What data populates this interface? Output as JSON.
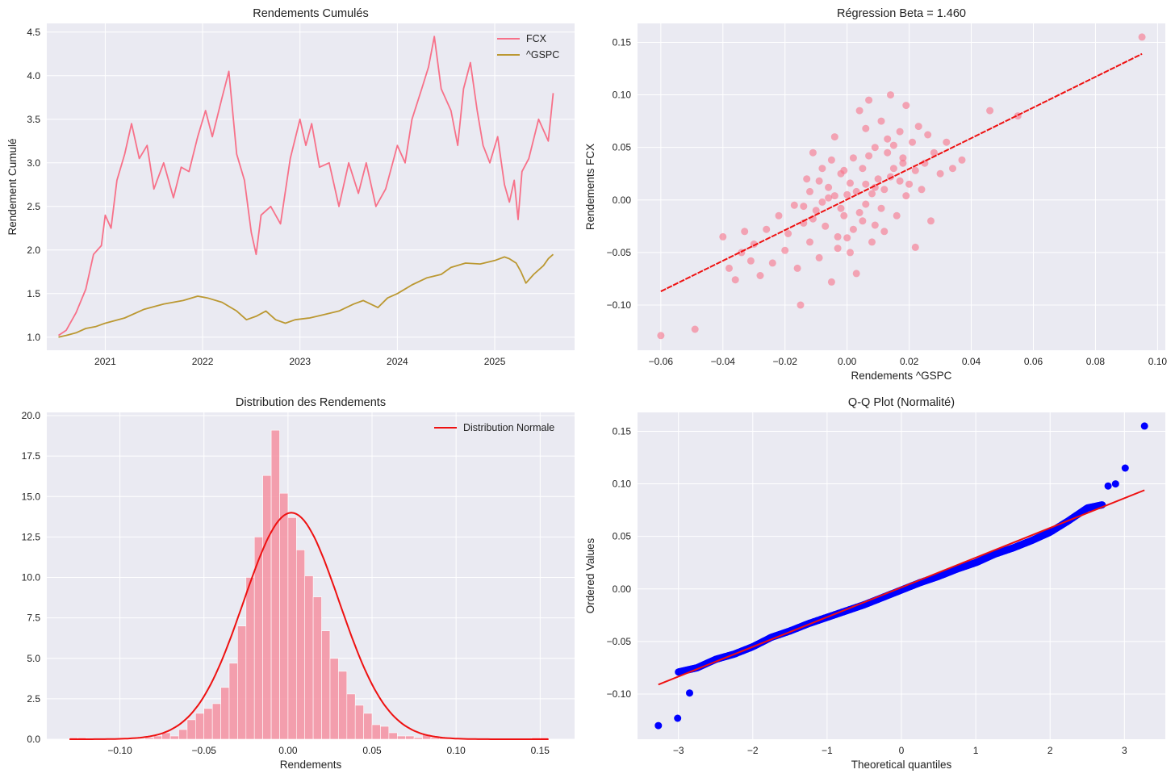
{
  "style": {
    "axes_bg": "#eaeaf2",
    "grid": "#ffffff",
    "fcx_color": "#f77189",
    "gspc_color": "#bb9832",
    "fit_color": "#ee1111",
    "qq_point_color": "#0000ff",
    "hist_color": "#f490a1"
  },
  "chart_data": [
    {
      "type": "line",
      "title": "Rendements Cumulés",
      "xlabel": "",
      "ylabel": "Rendement Cumulé",
      "xlim": [
        2020.4,
        2025.82
      ],
      "ylim": [
        0.85,
        4.6
      ],
      "xticks": [
        2021,
        2022,
        2023,
        2024,
        2025
      ],
      "xticklabels": [
        "2021",
        "2022",
        "2023",
        "2024",
        "2025"
      ],
      "yticks": [
        1.0,
        1.5,
        2.0,
        2.5,
        3.0,
        3.5,
        4.0,
        4.5
      ],
      "yticklabels": [
        "1.0",
        "1.5",
        "2.0",
        "2.5",
        "3.0",
        "3.5",
        "4.0",
        "4.5"
      ],
      "legend": {
        "position": "top-right",
        "entries": [
          "FCX",
          "^GSPC"
        ]
      },
      "series": [
        {
          "name": "FCX",
          "x": [
            2020.52,
            2020.6,
            2020.7,
            2020.8,
            2020.88,
            2020.96,
            2021.0,
            2021.06,
            2021.12,
            2021.2,
            2021.27,
            2021.35,
            2021.43,
            2021.5,
            2021.6,
            2021.7,
            2021.78,
            2021.86,
            2021.95,
            2022.03,
            2022.1,
            2022.2,
            2022.27,
            2022.35,
            2022.43,
            2022.5,
            2022.55,
            2022.6,
            2022.7,
            2022.8,
            2022.9,
            2023.0,
            2023.06,
            2023.12,
            2023.2,
            2023.3,
            2023.4,
            2023.5,
            2023.6,
            2023.68,
            2023.78,
            2023.88,
            2024.0,
            2024.08,
            2024.15,
            2024.25,
            2024.32,
            2024.38,
            2024.45,
            2024.55,
            2024.62,
            2024.68,
            2024.75,
            2024.82,
            2024.88,
            2024.95,
            2025.03,
            2025.1,
            2025.15,
            2025.2,
            2025.24,
            2025.28,
            2025.35,
            2025.45,
            2025.55,
            2025.6
          ],
          "values": [
            1.02,
            1.08,
            1.28,
            1.55,
            1.95,
            2.05,
            2.4,
            2.25,
            2.8,
            3.1,
            3.45,
            3.05,
            3.2,
            2.7,
            3.0,
            2.6,
            2.95,
            2.9,
            3.3,
            3.6,
            3.3,
            3.75,
            4.05,
            3.1,
            2.8,
            2.2,
            1.95,
            2.4,
            2.5,
            2.3,
            3.05,
            3.5,
            3.2,
            3.45,
            2.95,
            3.0,
            2.5,
            3.0,
            2.65,
            3.0,
            2.5,
            2.7,
            3.2,
            3.0,
            3.5,
            3.85,
            4.1,
            4.45,
            3.85,
            3.6,
            3.2,
            3.85,
            4.15,
            3.6,
            3.2,
            3.0,
            3.3,
            2.75,
            2.55,
            2.8,
            2.35,
            2.9,
            3.05,
            3.5,
            3.25,
            3.8
          ]
        },
        {
          "name": "^GSPC",
          "x": [
            2020.52,
            2020.6,
            2020.7,
            2020.8,
            2020.9,
            2021.0,
            2021.2,
            2021.4,
            2021.6,
            2021.8,
            2021.95,
            2022.05,
            2022.2,
            2022.35,
            2022.45,
            2022.55,
            2022.65,
            2022.75,
            2022.85,
            2022.95,
            2023.1,
            2023.25,
            2023.4,
            2023.55,
            2023.65,
            2023.8,
            2023.9,
            2024.0,
            2024.15,
            2024.3,
            2024.45,
            2024.55,
            2024.7,
            2024.85,
            2025.0,
            2025.1,
            2025.15,
            2025.22,
            2025.27,
            2025.32,
            2025.4,
            2025.5,
            2025.55,
            2025.6
          ],
          "values": [
            1.0,
            1.02,
            1.05,
            1.1,
            1.12,
            1.16,
            1.22,
            1.32,
            1.38,
            1.42,
            1.47,
            1.45,
            1.4,
            1.3,
            1.2,
            1.24,
            1.3,
            1.2,
            1.16,
            1.2,
            1.22,
            1.26,
            1.3,
            1.38,
            1.42,
            1.34,
            1.45,
            1.5,
            1.6,
            1.68,
            1.72,
            1.8,
            1.85,
            1.84,
            1.88,
            1.92,
            1.9,
            1.85,
            1.75,
            1.62,
            1.72,
            1.82,
            1.9,
            1.95
          ]
        }
      ]
    },
    {
      "type": "scatter",
      "title": "Régression Beta = 1.460",
      "xlabel": "Rendements ^GSPC",
      "ylabel": "Rendements FCX",
      "beta": 1.46,
      "xlim": [
        -0.0675,
        0.1025
      ],
      "ylim": [
        -0.143,
        0.168
      ],
      "xticks": [
        -0.06,
        -0.04,
        -0.02,
        0.0,
        0.02,
        0.04,
        0.06,
        0.08,
        0.1
      ],
      "xticklabels": [
        "−0.06",
        "−0.04",
        "−0.02",
        "0.00",
        "0.02",
        "0.04",
        "0.06",
        "0.08",
        "0.10"
      ],
      "yticks": [
        -0.1,
        -0.05,
        0.0,
        0.05,
        0.1,
        0.15
      ],
      "yticklabels": [
        "−0.10",
        "−0.05",
        "0.00",
        "0.05",
        "0.10",
        "0.15"
      ],
      "regression_line": {
        "x": [
          -0.06,
          0.095
        ],
        "y": [
          -0.087,
          0.139
        ]
      },
      "points": [
        [
          -0.06,
          -0.129
        ],
        [
          -0.049,
          -0.123
        ],
        [
          -0.04,
          -0.035
        ],
        [
          -0.038,
          -0.065
        ],
        [
          -0.036,
          -0.076
        ],
        [
          -0.034,
          -0.05
        ],
        [
          -0.033,
          -0.03
        ],
        [
          -0.031,
          -0.058
        ],
        [
          -0.03,
          -0.042
        ],
        [
          -0.028,
          -0.072
        ],
        [
          -0.026,
          -0.028
        ],
        [
          -0.024,
          -0.06
        ],
        [
          -0.022,
          -0.015
        ],
        [
          -0.02,
          -0.048
        ],
        [
          -0.019,
          -0.032
        ],
        [
          -0.017,
          -0.005
        ],
        [
          -0.016,
          -0.065
        ],
        [
          -0.015,
          -0.1
        ],
        [
          -0.014,
          -0.022
        ],
        [
          -0.013,
          0.02
        ],
        [
          -0.012,
          -0.04
        ],
        [
          -0.011,
          0.045
        ],
        [
          -0.01,
          -0.01
        ],
        [
          -0.009,
          -0.055
        ],
        [
          -0.008,
          0.03
        ],
        [
          -0.007,
          -0.025
        ],
        [
          -0.006,
          0.012
        ],
        [
          -0.005,
          -0.078
        ],
        [
          -0.004,
          0.06
        ],
        [
          -0.003,
          -0.035
        ],
        [
          -0.002,
          0.025
        ],
        [
          -0.001,
          -0.015
        ],
        [
          0.0,
          0.005
        ],
        [
          0.001,
          -0.05
        ],
        [
          0.002,
          0.04
        ],
        [
          0.003,
          -0.07
        ],
        [
          0.004,
          0.085
        ],
        [
          0.005,
          -0.02
        ],
        [
          0.006,
          0.015
        ],
        [
          0.007,
          0.095
        ],
        [
          0.008,
          -0.04
        ],
        [
          0.009,
          0.05
        ],
        [
          0.01,
          0.02
        ],
        [
          0.011,
          0.075
        ],
        [
          0.012,
          -0.03
        ],
        [
          0.013,
          0.045
        ],
        [
          0.014,
          0.1
        ],
        [
          0.015,
          0.03
        ],
        [
          0.016,
          -0.015
        ],
        [
          0.017,
          0.065
        ],
        [
          0.018,
          0.04
        ],
        [
          0.019,
          0.09
        ],
        [
          0.02,
          0.015
        ],
        [
          0.021,
          0.055
        ],
        [
          0.022,
          -0.045
        ],
        [
          0.023,
          0.07
        ],
        [
          0.024,
          0.01
        ],
        [
          0.025,
          0.035
        ],
        [
          0.026,
          0.062
        ],
        [
          0.027,
          -0.02
        ],
        [
          0.028,
          0.045
        ],
        [
          0.03,
          0.025
        ],
        [
          0.032,
          0.055
        ],
        [
          0.034,
          0.03
        ],
        [
          0.037,
          0.038
        ],
        [
          0.046,
          0.085
        ],
        [
          0.055,
          0.08
        ],
        [
          0.095,
          0.155
        ],
        [
          -0.008,
          -0.002
        ],
        [
          -0.004,
          0.004
        ],
        [
          0.003,
          0.008
        ],
        [
          0.006,
          -0.004
        ],
        [
          0.009,
          0.012
        ],
        [
          -0.011,
          -0.018
        ],
        [
          0.014,
          0.022
        ],
        [
          -0.002,
          -0.008
        ],
        [
          0.001,
          0.016
        ],
        [
          0.005,
          0.03
        ],
        [
          -0.006,
          0.002
        ],
        [
          0.008,
          0.006
        ],
        [
          0.012,
          0.01
        ],
        [
          -0.014,
          -0.006
        ],
        [
          0.017,
          0.018
        ],
        [
          -0.001,
          0.028
        ],
        [
          0.004,
          -0.012
        ],
        [
          0.011,
          -0.008
        ],
        [
          -0.009,
          0.018
        ],
        [
          0.019,
          0.004
        ],
        [
          0.002,
          -0.028
        ],
        [
          -0.005,
          0.038
        ],
        [
          0.007,
          0.042
        ],
        [
          0.015,
          0.052
        ],
        [
          -0.012,
          0.008
        ],
        [
          0.0,
          -0.036
        ],
        [
          0.022,
          0.028
        ],
        [
          0.006,
          0.068
        ],
        [
          -0.003,
          -0.046
        ],
        [
          0.013,
          0.058
        ],
        [
          0.009,
          -0.024
        ],
        [
          0.018,
          0.035
        ]
      ]
    },
    {
      "type": "bar",
      "title": "Distribution des Rendements",
      "xlabel": "Rendements",
      "ylabel": "",
      "xlim": [
        -0.1435,
        0.1705
      ],
      "ylim": [
        0,
        20.2
      ],
      "xticks": [
        -0.1,
        -0.05,
        0.0,
        0.05,
        0.1,
        0.15
      ],
      "xticklabels": [
        "−0.10",
        "−0.05",
        "0.00",
        "0.05",
        "0.10",
        "0.15"
      ],
      "yticks": [
        0,
        2.5,
        5.0,
        7.5,
        10.0,
        12.5,
        15.0,
        17.5,
        20.0
      ],
      "yticklabels": [
        "0.0",
        "2.5",
        "5.0",
        "7.5",
        "10.0",
        "12.5",
        "15.0",
        "17.5",
        "20.0"
      ],
      "legend": {
        "position": "top-right",
        "entries": [
          "Distribution Normale"
        ]
      },
      "bin_start": -0.13,
      "bin_width": 0.005,
      "values": [
        0.1,
        0.1,
        0,
        0,
        0,
        0,
        0.1,
        0,
        0,
        0.1,
        0.2,
        0.4,
        0.2,
        0.6,
        1.2,
        1.6,
        1.9,
        2.2,
        3.2,
        4.7,
        7.0,
        10.0,
        12.5,
        16.3,
        19.1,
        15.2,
        13.7,
        11.7,
        10.1,
        8.8,
        6.7,
        5.0,
        4.2,
        2.8,
        2.1,
        1.6,
        0.9,
        0.8,
        0.4,
        0.2,
        0.2,
        0.1,
        0.3,
        0.1,
        0.1,
        0,
        0,
        0,
        0,
        0,
        0,
        0,
        0,
        0,
        0,
        0.1,
        0.1
      ],
      "normal_fit": {
        "label": "Distribution Normale",
        "mean": 0.002,
        "std": 0.0285
      }
    },
    {
      "type": "scatter",
      "title": "Q-Q Plot (Normalité)",
      "xlabel": "Theoretical quantiles",
      "ylabel": "Ordered Values",
      "xlim": [
        -3.55,
        3.55
      ],
      "ylim": [
        -0.143,
        0.168
      ],
      "xticks": [
        -3,
        -2,
        -1,
        0,
        1,
        2,
        3
      ],
      "xticklabels": [
        "−3",
        "−2",
        "−1",
        "0",
        "1",
        "2",
        "3"
      ],
      "yticks": [
        -0.1,
        -0.05,
        0.0,
        0.05,
        0.1,
        0.15
      ],
      "yticklabels": [
        "−0.10",
        "−0.05",
        "0.00",
        "0.05",
        "0.10",
        "0.15"
      ],
      "fit_line": {
        "x": [
          -3.27,
          3.27
        ],
        "y": [
          -0.091,
          0.094
        ]
      },
      "curve": {
        "q": [
          -3.0,
          -2.75,
          -2.5,
          -2.25,
          -2.0,
          -1.75,
          -1.5,
          -1.25,
          -1.0,
          -0.75,
          -0.5,
          -0.25,
          0.0,
          0.25,
          0.5,
          0.75,
          1.0,
          1.25,
          1.5,
          1.75,
          2.0,
          2.25,
          2.5,
          2.7
        ],
        "v": [
          -0.079,
          -0.075,
          -0.067,
          -0.062,
          -0.055,
          -0.046,
          -0.04,
          -0.033,
          -0.027,
          -0.021,
          -0.015,
          -0.008,
          -0.001,
          0.006,
          0.012,
          0.019,
          0.025,
          0.033,
          0.039,
          0.046,
          0.054,
          0.065,
          0.077,
          0.08
        ]
      },
      "outliers": [
        [
          -3.27,
          -0.13
        ],
        [
          -3.01,
          -0.123
        ],
        [
          -2.85,
          -0.099
        ],
        [
          2.78,
          0.098
        ],
        [
          2.88,
          0.1
        ],
        [
          3.01,
          0.115
        ],
        [
          3.27,
          0.155
        ]
      ]
    }
  ]
}
